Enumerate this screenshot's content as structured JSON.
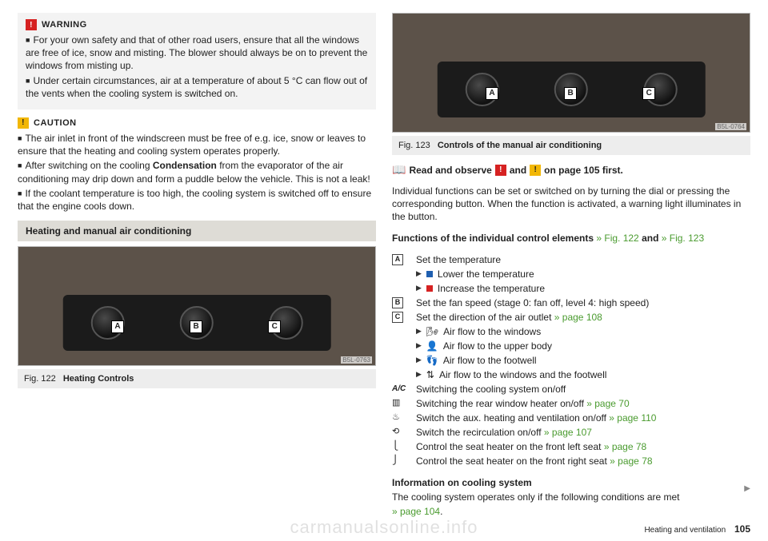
{
  "left": {
    "warning": {
      "title": "WARNING",
      "p1": "For your own safety and that of other road users, ensure that all the windows are free of ice, snow and misting. The blower should always be on to prevent the windows from misting up.",
      "p2": "Under certain circumstances, air at a temperature of about 5 °C can flow out of the vents when the cooling system is switched on."
    },
    "caution": {
      "title": "CAUTION",
      "p1": "The air inlet in front of the windscreen must be free of e.g. ice, snow or leaves to ensure that the heating and cooling system operates properly.",
      "p2a": "After switching on the cooling ",
      "p2b": "Condensation",
      "p2c": " from the evaporator of the air conditioning may drip down and form a puddle below the vehicle. This is not a leak!",
      "p3": "If the coolant temperature is too high, the cooling system is switched off to ensure that the engine cools down."
    },
    "section_title": "Heating and manual air conditioning",
    "fig122": {
      "code": "B5L-0763",
      "num": "Fig. 122",
      "caption": "Heating Controls"
    }
  },
  "right": {
    "fig123": {
      "code": "B5L-0764",
      "num": "Fig. 123",
      "caption": "Controls of the manual air conditioning"
    },
    "read1": "Read and observe",
    "read2": "and",
    "read3": "on page 105 first.",
    "intro": "Individual functions can be set or switched on by turning the dial or pressing the corresponding button. When the function is activated, a warning light illuminates in the button.",
    "func_title1": "Functions of the individual control elements",
    "func_title2": " » Fig. 122 ",
    "func_title3": "and",
    "func_title4": " » Fig. 123",
    "A": {
      "txt": "Set the temperature"
    },
    "A_lower": "Lower the temperature",
    "A_raise": "Increase the temperature",
    "B": {
      "txt": "Set the fan speed (stage 0: fan off, level 4: high speed)"
    },
    "C": {
      "txt": "Set the direction of the air outlet ",
      "link": "» page 108"
    },
    "C_windows": "Air flow to the windows",
    "C_upper": "Air flow to the upper body",
    "C_foot": "Air flow to the footwell",
    "C_both": "Air flow to the windows and the footwell",
    "ac": "Switching the cooling system on/off",
    "rear": {
      "txt": "Switching the rear window heater on/off ",
      "link": "» page 70"
    },
    "aux": {
      "txt": "Switch the aux. heating and ventilation on/off ",
      "link": "» page 110"
    },
    "recirc": {
      "txt": "Switch the recirculation on/off ",
      "link": "» page 107"
    },
    "seatL": {
      "txt": "Control the seat heater on the front left seat ",
      "link": "» page 78"
    },
    "seatR": {
      "txt": "Control the seat heater on the front right seat ",
      "link": "» page 78"
    },
    "info_title": "Information on cooling system",
    "info_txt": "The cooling system operates only if the following conditions are met",
    "info_link": "» page 104"
  },
  "footer": {
    "section": "Heating and ventilation",
    "page": "105"
  },
  "watermark": "carmanualsonline.info"
}
